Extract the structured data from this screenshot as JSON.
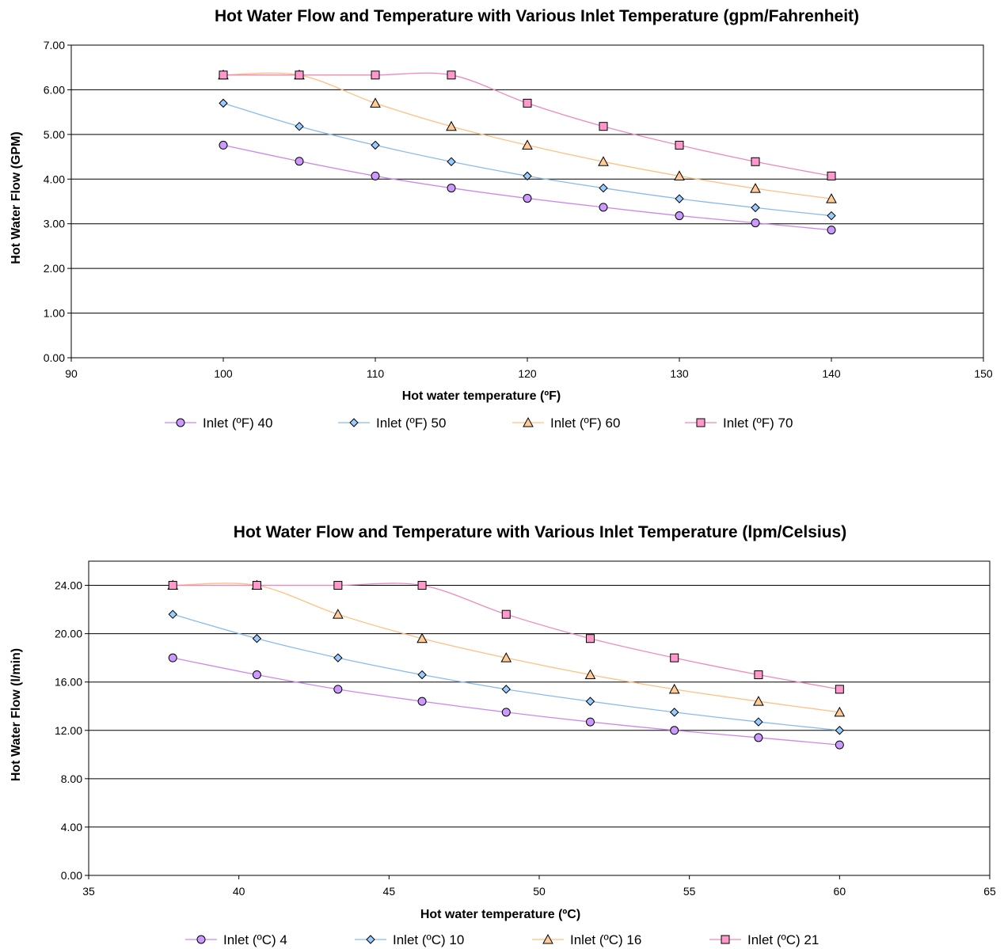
{
  "chart_data": [
    {
      "type": "line",
      "title": "Hot Water Flow and Temperature with Various Inlet Temperature (gpm/Fahrenheit)",
      "xlabel": "Hot water temperature (ºF)",
      "ylabel": "Hot Water Flow (GPM)",
      "xlim": [
        90,
        150
      ],
      "ylim": [
        0,
        7
      ],
      "xticks": [
        90,
        100,
        110,
        120,
        130,
        140,
        150
      ],
      "yticks": [
        "0.00",
        "1.00",
        "2.00",
        "3.00",
        "4.00",
        "5.00",
        "6.00",
        "7.00"
      ],
      "grid": "horizontal",
      "legend": "bottom",
      "x": [
        100,
        105,
        110,
        115,
        120,
        125,
        130,
        135,
        140
      ],
      "series": [
        {
          "name": "Inlet (ºF) 40",
          "marker": "circle",
          "line_color": "#cc88ee",
          "fill_color": "#cc99ff",
          "values": [
            4.76,
            4.4,
            4.07,
            3.8,
            3.57,
            3.37,
            3.18,
            3.02,
            2.86
          ]
        },
        {
          "name": "Inlet (ºF) 50",
          "marker": "diamond",
          "line_color": "#88bbee",
          "fill_color": "#99ccff",
          "values": [
            5.7,
            5.18,
            4.76,
            4.39,
            4.07,
            3.8,
            3.56,
            3.36,
            3.18
          ]
        },
        {
          "name": "Inlet (ºF) 60",
          "marker": "triangle",
          "line_color": "#ffc080",
          "fill_color": "#ffcc99",
          "values": [
            6.33,
            6.33,
            5.7,
            5.18,
            4.76,
            4.39,
            4.07,
            3.79,
            3.56
          ]
        },
        {
          "name": "Inlet (ºF) 70",
          "marker": "square",
          "line_color": "#ee88bb",
          "fill_color": "#ff99cc",
          "values": [
            6.33,
            6.33,
            6.33,
            6.33,
            5.7,
            5.18,
            4.76,
            4.39,
            4.07
          ]
        }
      ]
    },
    {
      "type": "line",
      "title": "Hot Water Flow and Temperature with Various Inlet Temperature (lpm/Celsius)",
      "xlabel": "Hot water temperature (ºC)",
      "ylabel": "Hot Water Flow (l/min)",
      "xlim": [
        35,
        65
      ],
      "ylim": [
        0,
        26
      ],
      "xticks": [
        35,
        40,
        45,
        50,
        55,
        60,
        65
      ],
      "yticks": [
        "0.00",
        "4.00",
        "8.00",
        "12.00",
        "16.00",
        "20.00",
        "24.00"
      ],
      "grid": "horizontal",
      "legend": "bottom",
      "x": [
        37.8,
        40.6,
        43.3,
        46.1,
        48.9,
        51.7,
        54.5,
        57.3,
        60.0
      ],
      "series": [
        {
          "name": "Inlet (ºC) 4",
          "marker": "circle",
          "line_color": "#cc88ee",
          "fill_color": "#cc99ff",
          "values": [
            18.0,
            16.6,
            15.4,
            14.4,
            13.5,
            12.7,
            12.0,
            11.4,
            10.8
          ]
        },
        {
          "name": "Inlet (ºC) 10",
          "marker": "diamond",
          "line_color": "#88bbee",
          "fill_color": "#99ccff",
          "values": [
            21.6,
            19.6,
            18.0,
            16.6,
            15.4,
            14.4,
            13.5,
            12.7,
            12.0
          ]
        },
        {
          "name": "Inlet (ºC) 16",
          "marker": "triangle",
          "line_color": "#ffc080",
          "fill_color": "#ffcc99",
          "values": [
            24.0,
            24.0,
            21.6,
            19.6,
            18.0,
            16.6,
            15.4,
            14.4,
            13.5
          ]
        },
        {
          "name": "Inlet (ºC) 21",
          "marker": "square",
          "line_color": "#ee88bb",
          "fill_color": "#ff99cc",
          "values": [
            24.0,
            24.0,
            24.0,
            24.0,
            21.6,
            19.6,
            18.0,
            16.6,
            15.4
          ]
        }
      ]
    }
  ]
}
